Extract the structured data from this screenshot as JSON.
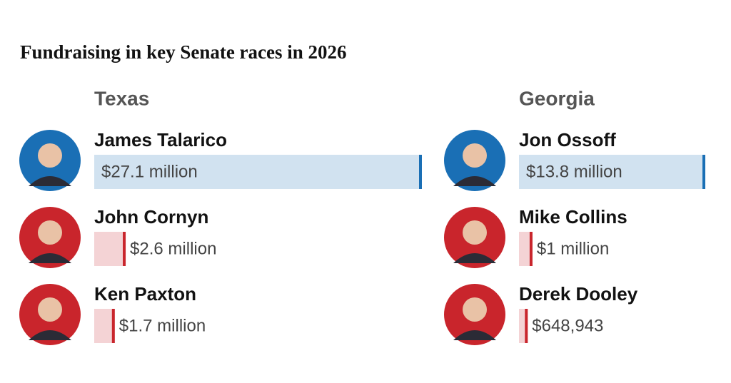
{
  "title": "Fundraising in key Senate races in 2026",
  "chart_data": [
    {
      "type": "bar",
      "title": "Texas",
      "categories": [
        "James Talarico",
        "John Cornyn",
        "Ken Paxton"
      ],
      "values": [
        27100000,
        2600000,
        1700000
      ],
      "value_labels": [
        "$27.1 million",
        "$2.6 million",
        "$1.7 million"
      ],
      "colors": [
        "#1a6fb5",
        "#c9252c",
        "#c9252c"
      ]
    },
    {
      "type": "bar",
      "title": "Georgia",
      "categories": [
        "Jon Ossoff",
        "Mike Collins",
        "Derek Dooley"
      ],
      "values": [
        13800000,
        1000000,
        648943
      ],
      "value_labels": [
        "$13.8 million",
        "$1 million",
        "$648,943"
      ],
      "colors": [
        "#1a6fb5",
        "#c9252c",
        "#c9252c"
      ]
    }
  ]
}
